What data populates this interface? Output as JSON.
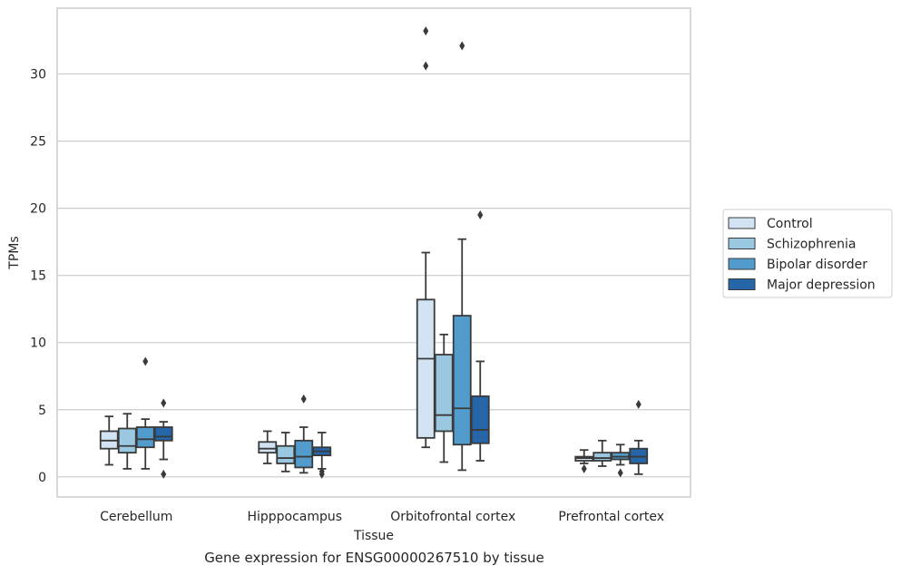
{
  "figure": {
    "caption": "Gene expression for ENSG00000267510 by tissue"
  },
  "chart_data": {
    "type": "box",
    "xlabel": "Tissue",
    "ylabel": "TPMs",
    "ylim": [
      -1.5,
      34.9
    ],
    "yticks": [
      0,
      5,
      10,
      15,
      20,
      25,
      30
    ],
    "grid": "horizontal",
    "legend_position": "right",
    "categories": [
      "Cerebellum",
      "Hipppocampus",
      "Orbitofrontal cortex",
      "Prefrontal cortex"
    ],
    "series": [
      {
        "name": "Control",
        "color": "#d2e3f3",
        "boxes": [
          {
            "whislo": 0.9,
            "q1": 2.1,
            "med": 2.7,
            "q3": 3.4,
            "whishi": 4.5,
            "fliers": []
          },
          {
            "whislo": 1.0,
            "q1": 1.8,
            "med": 2.1,
            "q3": 2.6,
            "whishi": 3.4,
            "fliers": []
          },
          {
            "whislo": 2.2,
            "q1": 2.9,
            "med": 8.8,
            "q3": 13.2,
            "whishi": 16.7,
            "fliers": [
              30.6,
              33.2
            ]
          },
          {
            "whislo": 1.0,
            "q1": 1.2,
            "med": 1.4,
            "q3": 1.5,
            "whishi": 2.0,
            "fliers": [
              0.6
            ]
          }
        ]
      },
      {
        "name": "Schizophrenia",
        "color": "#9ac8e0",
        "boxes": [
          {
            "whislo": 0.6,
            "q1": 1.8,
            "med": 2.3,
            "q3": 3.6,
            "whishi": 4.7,
            "fliers": []
          },
          {
            "whislo": 0.4,
            "q1": 1.0,
            "med": 1.4,
            "q3": 2.3,
            "whishi": 3.3,
            "fliers": []
          },
          {
            "whislo": 1.1,
            "q1": 3.4,
            "med": 4.6,
            "q3": 9.1,
            "whishi": 10.6,
            "fliers": []
          },
          {
            "whislo": 0.8,
            "q1": 1.2,
            "med": 1.4,
            "q3": 1.8,
            "whishi": 2.7,
            "fliers": []
          }
        ]
      },
      {
        "name": "Bipolar disorder",
        "color": "#519ccc",
        "boxes": [
          {
            "whislo": 0.6,
            "q1": 2.2,
            "med": 2.8,
            "q3": 3.7,
            "whishi": 4.3,
            "fliers": [
              8.6
            ]
          },
          {
            "whislo": 0.3,
            "q1": 0.7,
            "med": 1.5,
            "q3": 2.7,
            "whishi": 3.7,
            "fliers": [
              5.8
            ]
          },
          {
            "whislo": 0.5,
            "q1": 2.4,
            "med": 5.1,
            "q3": 12.0,
            "whishi": 17.7,
            "fliers": [
              32.1
            ]
          },
          {
            "whislo": 0.9,
            "q1": 1.3,
            "med": 1.5,
            "q3": 1.8,
            "whishi": 2.4,
            "fliers": [
              0.3
            ]
          }
        ]
      },
      {
        "name": "Major depression",
        "color": "#2565a8",
        "boxes": [
          {
            "whislo": 1.3,
            "q1": 2.7,
            "med": 3.0,
            "q3": 3.7,
            "whishi": 4.1,
            "fliers": [
              5.5,
              0.2
            ]
          },
          {
            "whislo": 0.6,
            "q1": 1.6,
            "med": 1.9,
            "q3": 2.2,
            "whishi": 3.3,
            "fliers": [
              0.4,
              0.2
            ]
          },
          {
            "whislo": 1.2,
            "q1": 2.5,
            "med": 3.5,
            "q3": 6.0,
            "whishi": 8.6,
            "fliers": [
              19.5
            ]
          },
          {
            "whislo": 0.2,
            "q1": 1.0,
            "med": 1.5,
            "q3": 2.1,
            "whishi": 2.7,
            "fliers": [
              5.4
            ]
          }
        ]
      }
    ]
  }
}
